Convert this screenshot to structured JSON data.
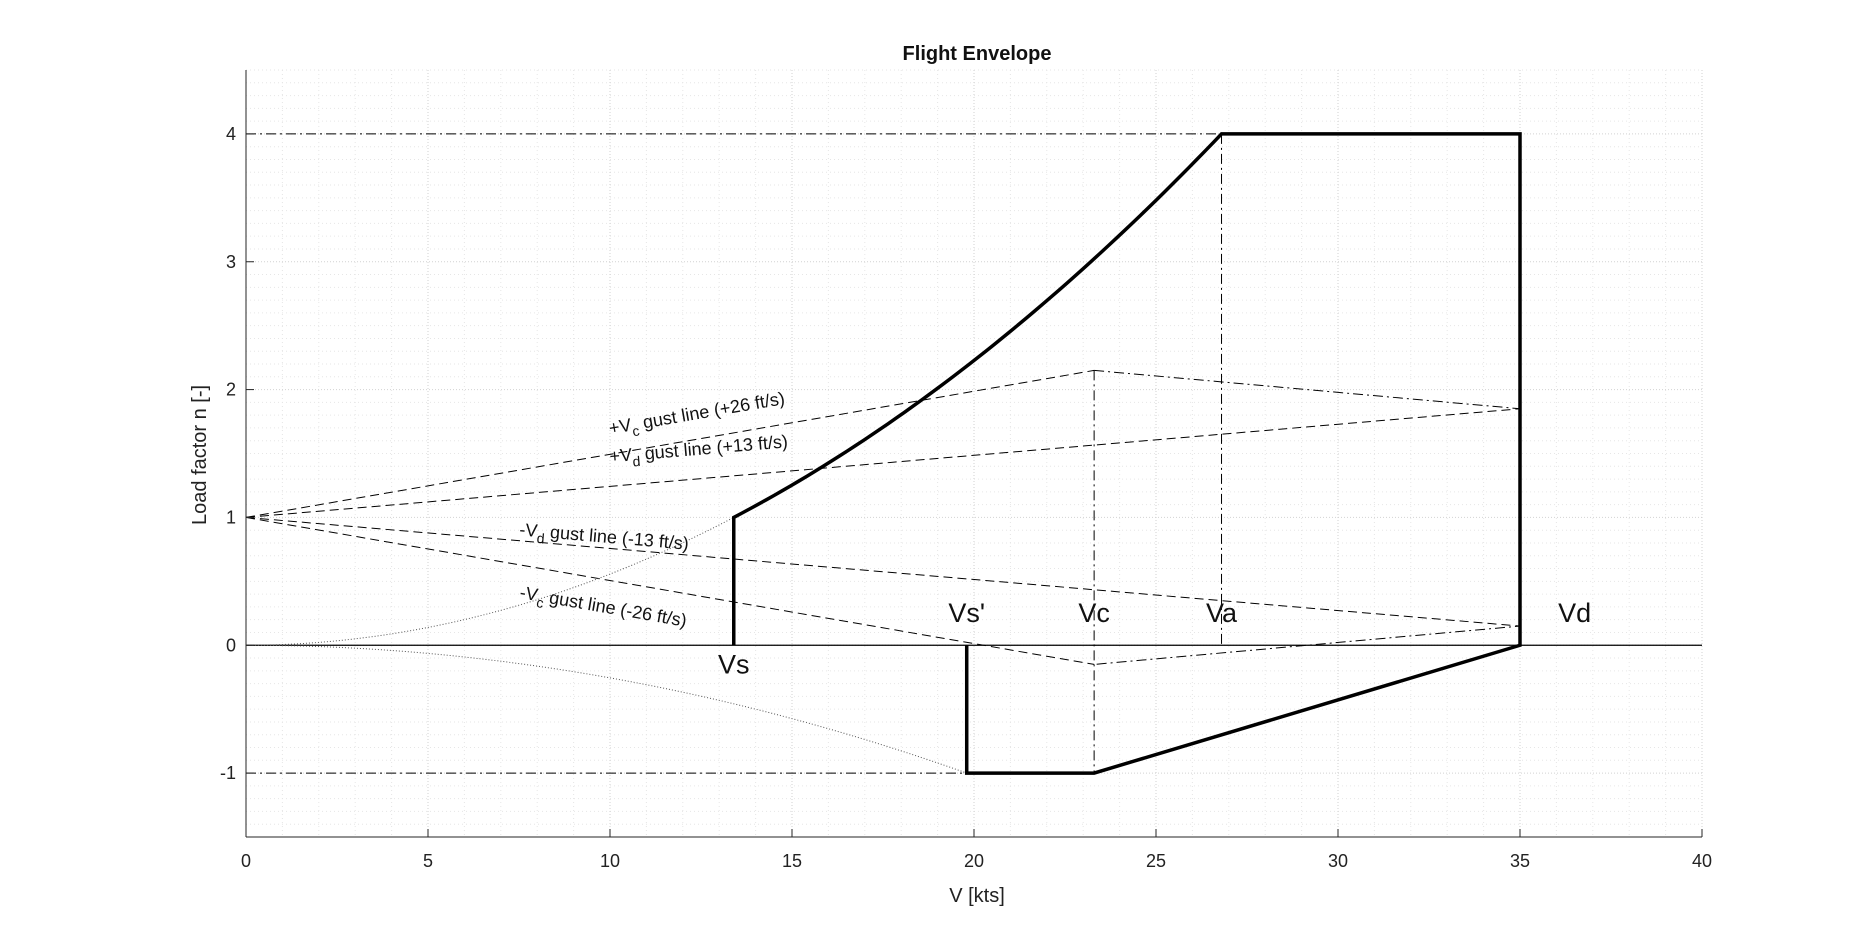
{
  "chart_data": {
    "type": "line",
    "title": "Flight Envelope",
    "xlabel": "V [kts]",
    "ylabel": "Load factor n [-]",
    "xlim": [
      0,
      40
    ],
    "ylim": [
      -1.5,
      4.5
    ],
    "xticks": [
      0,
      5,
      10,
      15,
      20,
      25,
      30,
      35,
      40
    ],
    "yticks": [
      -1,
      0,
      1,
      2,
      3,
      4
    ],
    "grid": "on",
    "minor_grid": "on",
    "speeds": {
      "Vs": 13.4,
      "Vs_neg": 19.8,
      "Vc": 23.3,
      "Va": 26.8,
      "Vd": 35.0
    },
    "load_limits": {
      "n_max": 4,
      "n_min": -1
    },
    "speed_labels": [
      {
        "text": "Vs",
        "x": 13.4,
        "y": -0.22
      },
      {
        "text": "Vs'",
        "x": 19.8,
        "y": 0.18
      },
      {
        "text": "Vc",
        "x": 23.3,
        "y": 0.18
      },
      {
        "text": "Va",
        "x": 26.8,
        "y": 0.18
      },
      {
        "text": "Vd",
        "x": 36.5,
        "y": 0.18
      }
    ],
    "gust_lines": [
      {
        "sign": "+",
        "sub": "c",
        "rest": " gust line (+26 ft/s)",
        "end": [
          23.3,
          2.15
        ],
        "label_at": [
          10,
          1.65
        ]
      },
      {
        "sign": "+",
        "sub": "d",
        "rest": " gust line (+13 ft/s)",
        "end": [
          35.0,
          1.85
        ],
        "label_at": [
          10,
          1.43
        ]
      },
      {
        "sign": "-",
        "sub": "d",
        "rest": " gust line (-13 ft/s)",
        "end": [
          35.0,
          0.15
        ],
        "label_at": [
          7.5,
          0.86
        ]
      },
      {
        "sign": "-",
        "sub": "c",
        "rest": " gust line (-26 ft/s)",
        "end": [
          23.3,
          -0.15
        ],
        "label_at": [
          7.5,
          0.37
        ]
      }
    ],
    "gust_origin": [
      0,
      1
    ],
    "gust_tips": [
      [
        23.3,
        2.15
      ],
      [
        35.0,
        1.85
      ],
      [
        35.0,
        0.15
      ],
      [
        23.3,
        -0.15
      ]
    ],
    "envelope": [
      [
        13.4,
        0
      ],
      [
        13.4,
        1
      ],
      [
        26.8,
        4
      ],
      [
        35.0,
        4
      ],
      [
        35.0,
        0
      ],
      [
        23.3,
        -1
      ],
      [
        19.8,
        -1
      ],
      [
        19.8,
        0
      ]
    ]
  }
}
